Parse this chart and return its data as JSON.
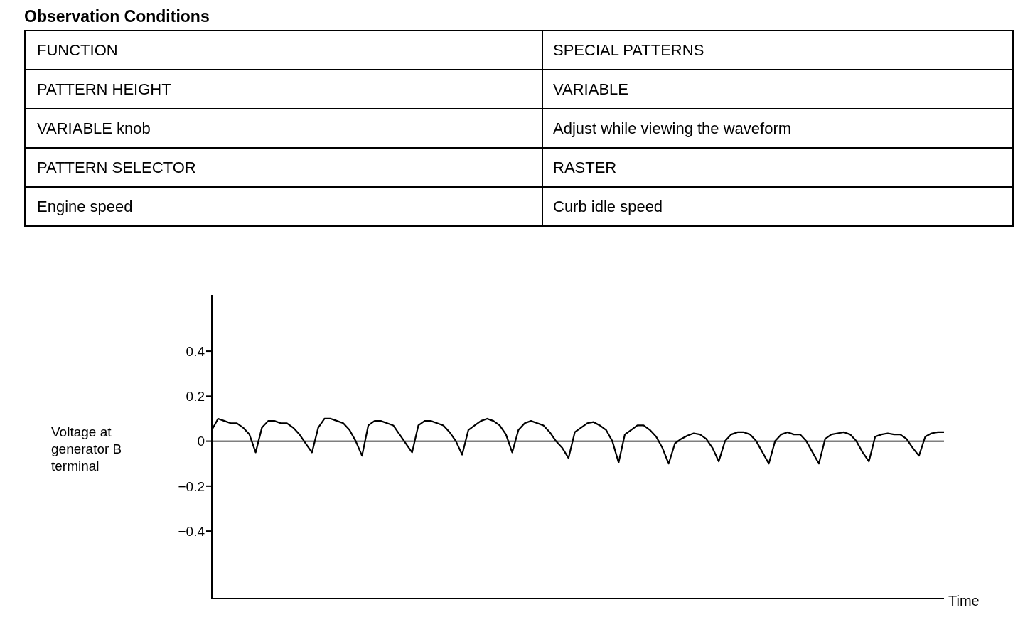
{
  "chart_data": {
    "type": "line",
    "title": "Observation Conditions",
    "annotations": [
      "FUNCTION",
      "SPECIAL PATTERNS",
      "PATTERN HEIGHT",
      "VARIABLE",
      "VARIABLE knob",
      "Adjust while viewing the waveform",
      "PATTERN SELECTOR",
      "RASTER",
      "Engine speed",
      "Curb idle speed"
    ],
    "xlabel": "Time",
    "ylabel": "Voltage at generator B terminal",
    "categories": [
      null,
      null,
      null,
      null,
      null,
      null,
      null,
      null,
      null,
      null,
      null,
      null,
      null,
      null,
      null,
      null,
      null,
      null,
      null,
      null,
      null,
      null,
      null,
      null,
      null,
      null,
      null,
      null,
      null,
      null,
      null,
      null,
      null,
      null,
      null,
      null,
      null,
      null,
      null,
      null,
      null,
      null,
      null,
      null,
      null,
      null,
      null,
      null,
      null,
      null,
      null,
      null,
      null,
      null,
      null,
      null,
      null,
      null,
      null,
      null,
      null,
      null,
      null,
      null,
      null,
      null,
      null,
      null,
      null,
      null,
      null,
      null,
      null,
      null,
      null,
      null,
      null,
      null,
      null,
      null,
      null,
      null,
      null,
      null,
      null,
      null,
      null,
      null,
      null,
      null,
      null,
      null,
      null,
      null,
      null,
      null,
      null,
      null,
      null,
      null,
      null,
      null,
      null,
      null,
      null,
      null,
      null,
      null,
      null,
      null,
      null,
      null,
      null,
      null,
      null,
      null,
      null,
      null
    ],
    "series": [
      {
        "color": "#000000",
        "values": [
          0.05,
          0.1,
          0.09,
          0.08,
          0.08,
          0.06,
          0.03,
          -0.05,
          0.06,
          0.09,
          0.09,
          0.08,
          0.08,
          0.06,
          0.03,
          -0.01,
          -0.05,
          0.06,
          0.1,
          0.1,
          0.09,
          0.08,
          0.05,
          0.0,
          -0.065,
          0.07,
          0.09,
          0.09,
          0.08,
          0.07,
          0.03,
          -0.01,
          -0.05,
          0.07,
          0.09,
          0.09,
          0.08,
          0.07,
          0.04,
          0.0,
          -0.06,
          0.05,
          0.07,
          0.09,
          0.1,
          0.09,
          0.07,
          0.03,
          -0.05,
          0.05,
          0.08,
          0.09,
          0.08,
          0.07,
          0.04,
          0.0,
          -0.03,
          -0.075,
          0.04,
          0.06,
          0.08,
          0.085,
          0.07,
          0.05,
          0.0,
          -0.095,
          0.03,
          0.05,
          0.07,
          0.07,
          0.05,
          0.02,
          -0.03,
          -0.1,
          -0.01,
          0.01,
          0.025,
          0.035,
          0.03,
          0.01,
          -0.03,
          -0.09,
          0.0,
          0.03,
          0.04,
          0.04,
          0.03,
          0.0,
          -0.05,
          -0.1,
          0.0,
          0.03,
          0.04,
          0.03,
          0.03,
          0.0,
          -0.05,
          -0.1,
          0.01,
          0.03,
          0.035,
          0.04,
          0.03,
          0.0,
          -0.05,
          -0.09,
          0.02,
          0.03,
          0.035,
          0.03,
          0.03,
          0.01,
          -0.03,
          -0.065,
          0.02,
          0.035,
          0.04,
          0.04
        ]
      }
    ],
    "ylim": [
      -0.7,
      0.65
    ],
    "yticks": [
      {
        "value": -0.4,
        "label": "−0.4"
      },
      {
        "value": -0.2,
        "label": "−0.2"
      },
      0,
      0.2,
      0.4
    ],
    "ref_lines": [
      {
        "axis": "y",
        "value": 0,
        "color": "#000000"
      }
    ],
    "marker": "none",
    "line_style": "solid"
  }
}
